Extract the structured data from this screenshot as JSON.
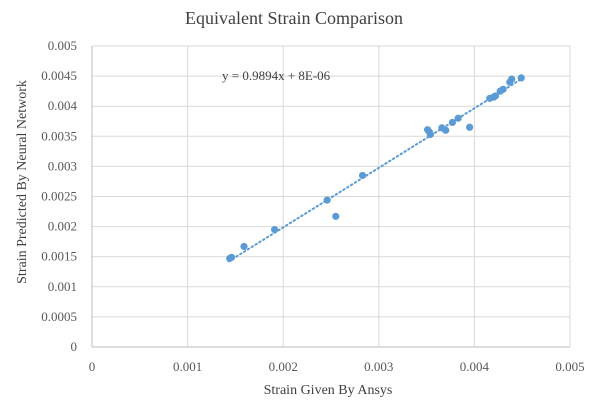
{
  "chart_data": {
    "type": "scatter",
    "title": "Equivalent Strain Comparison",
    "xlabel": "Strain Given By Ansys",
    "ylabel": "Strain Predicted By Neural Network",
    "xlim": [
      0,
      0.005
    ],
    "ylim": [
      0,
      0.005
    ],
    "x_ticks": [
      "0",
      "0.001",
      "0.002",
      "0.003",
      "0.004",
      "0.005"
    ],
    "y_ticks": [
      "0",
      "0.0005",
      "0.001",
      "0.0015",
      "0.002",
      "0.0025",
      "0.003",
      "0.0035",
      "0.004",
      "0.0045",
      "0.005"
    ],
    "grid": true,
    "marker_color": "#5b9bd5",
    "trendline": {
      "type": "linear",
      "equation": "y = 0.9894x + 8E-06",
      "slope": 0.9894,
      "intercept": 8e-06,
      "x_range": [
        0.00143,
        0.00449
      ],
      "style": "dotted",
      "color": "#5b9bd5"
    },
    "points": [
      {
        "x": 0.00144,
        "y": 0.00147
      },
      {
        "x": 0.00146,
        "y": 0.00149
      },
      {
        "x": 0.00159,
        "y": 0.00167
      },
      {
        "x": 0.00191,
        "y": 0.00195
      },
      {
        "x": 0.00246,
        "y": 0.00244
      },
      {
        "x": 0.00255,
        "y": 0.00217
      },
      {
        "x": 0.00283,
        "y": 0.00285
      },
      {
        "x": 0.00351,
        "y": 0.00361
      },
      {
        "x": 0.00354,
        "y": 0.00353
      },
      {
        "x": 0.00353,
        "y": 0.00357
      },
      {
        "x": 0.00366,
        "y": 0.00364
      },
      {
        "x": 0.0037,
        "y": 0.0036
      },
      {
        "x": 0.00377,
        "y": 0.00373
      },
      {
        "x": 0.00383,
        "y": 0.0038
      },
      {
        "x": 0.00395,
        "y": 0.00365
      },
      {
        "x": 0.00416,
        "y": 0.00413
      },
      {
        "x": 0.0042,
        "y": 0.00415
      },
      {
        "x": 0.00422,
        "y": 0.00417
      },
      {
        "x": 0.00427,
        "y": 0.00425
      },
      {
        "x": 0.0043,
        "y": 0.00428
      },
      {
        "x": 0.00437,
        "y": 0.0044
      },
      {
        "x": 0.00439,
        "y": 0.00445
      },
      {
        "x": 0.00449,
        "y": 0.00447
      }
    ]
  }
}
